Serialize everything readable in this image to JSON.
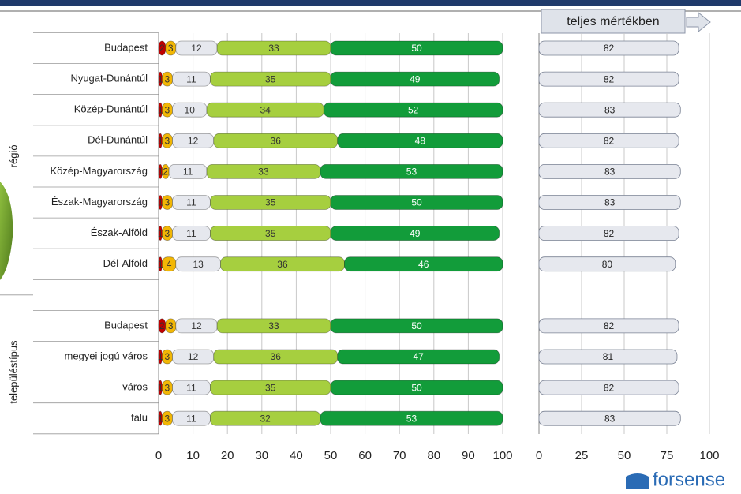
{
  "chart_data": [
    {
      "type": "stacked_bar",
      "orientation": "horizontal",
      "categories": [
        "Budapest",
        "Nyugat-Dunántúl",
        "Közép-Dunántúl",
        "Dél-Dunántúl",
        "Közép-Magyarország",
        "Észak-Magyarország",
        "Észak-Alföld",
        "Dél-Alföld",
        null,
        "Budapest",
        "megyei jogú város",
        "város",
        "falu"
      ],
      "group_labels": [
        "régió",
        "településtípus"
      ],
      "series": [
        {
          "color": "#c00000",
          "values": [
            2,
            1,
            1,
            1,
            1,
            1,
            1,
            1,
            null,
            2,
            1,
            1,
            1
          ]
        },
        {
          "color": "#f2b705",
          "values": [
            3,
            3,
            3,
            3,
            2,
            3,
            3,
            4,
            null,
            3,
            3,
            3,
            3
          ]
        },
        {
          "color": "#e6e8ee",
          "values": [
            12,
            11,
            10,
            12,
            11,
            11,
            11,
            13,
            null,
            12,
            12,
            11,
            11
          ]
        },
        {
          "color": "#a6cf3f",
          "values": [
            33,
            35,
            34,
            36,
            33,
            35,
            35,
            36,
            null,
            33,
            36,
            35,
            32
          ]
        },
        {
          "color": "#129c3a",
          "values": [
            50,
            49,
            52,
            48,
            53,
            50,
            49,
            46,
            null,
            50,
            47,
            50,
            53
          ]
        }
      ],
      "xlim": [
        0,
        100
      ],
      "xticks": [
        0,
        10,
        20,
        30,
        40,
        50,
        60,
        70,
        80,
        90,
        100
      ],
      "grid": true
    },
    {
      "type": "bar",
      "orientation": "horizontal",
      "title": "teljes mértékben",
      "values": [
        82,
        82,
        83,
        82,
        83,
        83,
        82,
        80,
        null,
        82,
        81,
        82,
        83
      ],
      "color": "#e6e8ee",
      "xlim": [
        0,
        100
      ],
      "xticks": [
        0,
        25,
        50,
        75,
        100
      ],
      "grid": true
    }
  ],
  "logo": "forsense"
}
